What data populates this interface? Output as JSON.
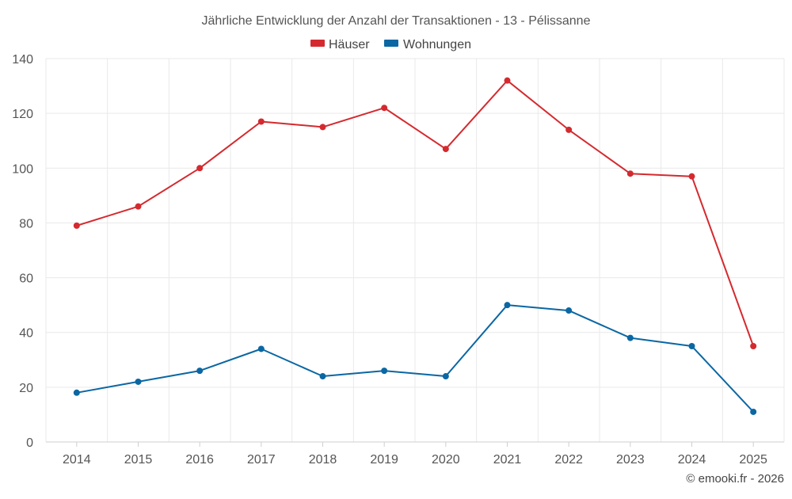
{
  "chart_data": {
    "type": "line",
    "title": "Jährliche Entwicklung der Anzahl der Transaktionen - 13 - Pélissanne",
    "categories": [
      "2014",
      "2015",
      "2016",
      "2017",
      "2018",
      "2019",
      "2020",
      "2021",
      "2022",
      "2023",
      "2024",
      "2025"
    ],
    "series": [
      {
        "name": "Häuser",
        "color": "#d42a2f",
        "values": [
          79,
          86,
          100,
          117,
          115,
          122,
          107,
          132,
          114,
          98,
          97,
          35
        ]
      },
      {
        "name": "Wohnungen",
        "color": "#0a67a3",
        "values": [
          18,
          22,
          26,
          34,
          24,
          26,
          24,
          50,
          48,
          38,
          35,
          11
        ]
      }
    ],
    "ylim": [
      0,
      140
    ],
    "yticks": [
      0,
      20,
      40,
      60,
      80,
      100,
      120,
      140
    ],
    "ytick_labels": [
      "0",
      "20",
      "40",
      "60",
      "80",
      "100",
      "120",
      "140"
    ],
    "xlabel": "",
    "ylabel": "",
    "grid": true,
    "legend_position": "top-center"
  },
  "credit": "© emooki.fr - 2026"
}
